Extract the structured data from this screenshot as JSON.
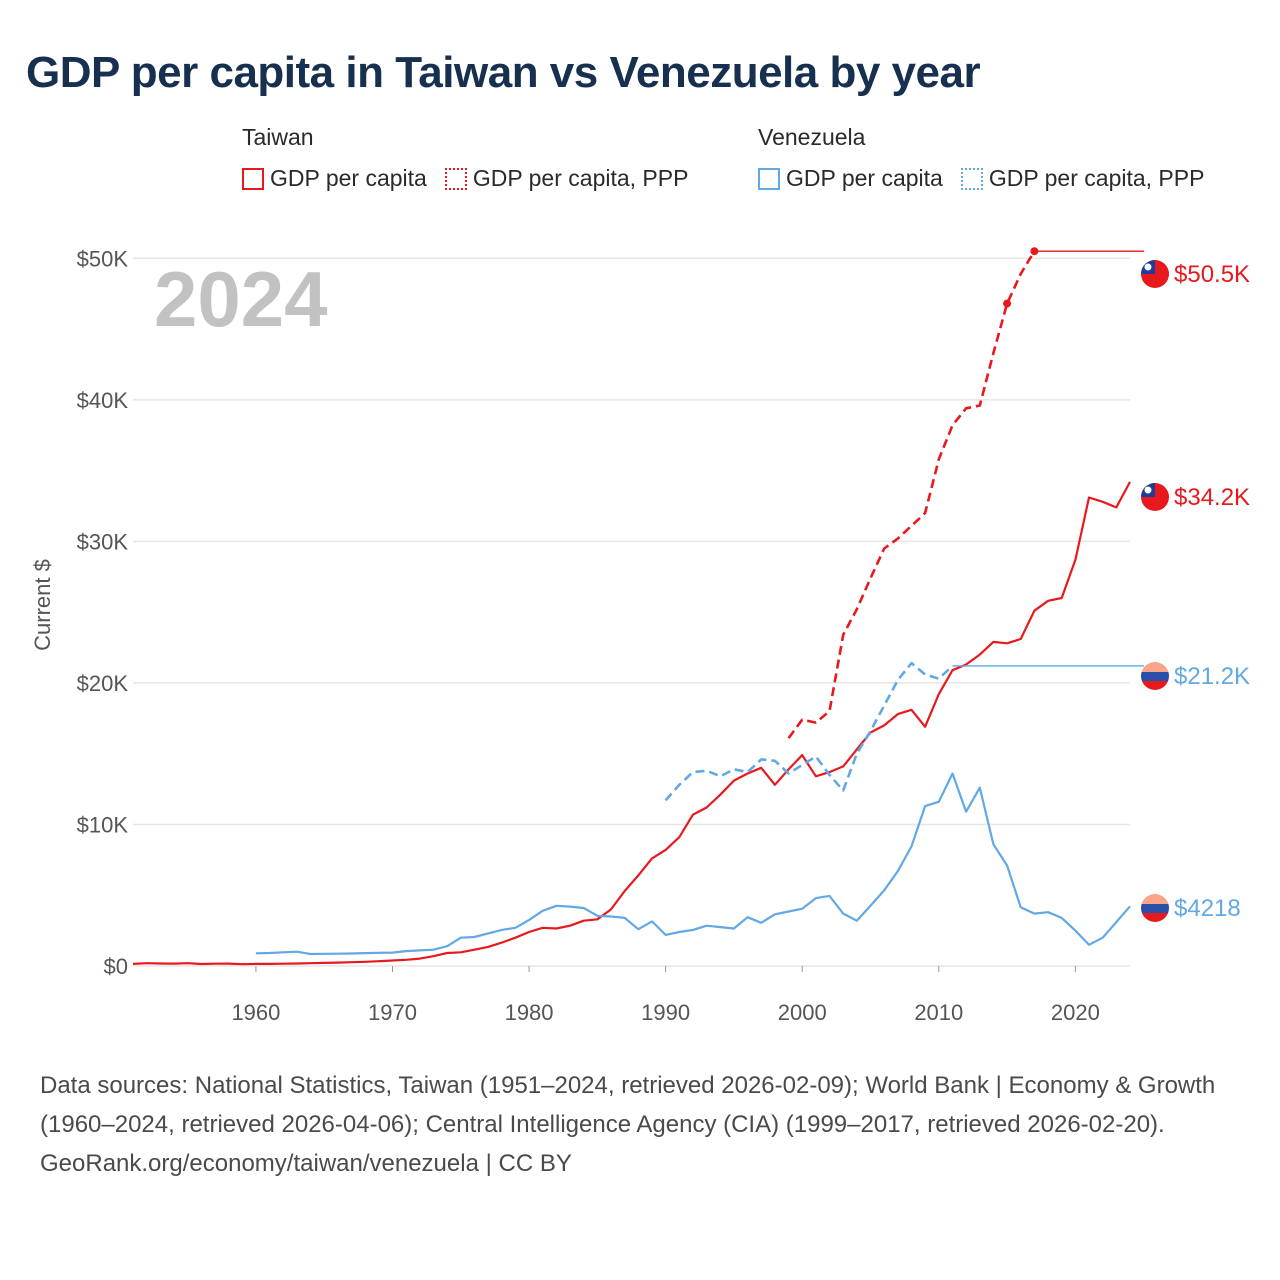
{
  "title": "GDP per capita in Taiwan vs Venezuela by year",
  "legend": {
    "groups": [
      {
        "name": "Taiwan",
        "items": [
          {
            "label": "GDP per capita",
            "color": "#e8191c",
            "style": "solid"
          },
          {
            "label": "GDP per capita, PPP",
            "color": "#e8191c",
            "style": "dotted"
          }
        ]
      },
      {
        "name": "Venezuela",
        "items": [
          {
            "label": "GDP per capita",
            "color": "#62a8e5",
            "style": "solid"
          },
          {
            "label": "GDP per capita, PPP",
            "color": "#62a8e5",
            "style": "dotted"
          }
        ]
      }
    ]
  },
  "colors": {
    "taiwan": "#e8191c",
    "venezuela": "#62a8e5",
    "grid": "#e6e6e6",
    "year": "#c2c2c2"
  },
  "chart_data": {
    "type": "line",
    "current_year": "2024",
    "ylabel": "Current $",
    "xlim": [
      1951,
      2024
    ],
    "ylim": [
      0,
      52000
    ],
    "y_ticks": [
      0,
      10000,
      20000,
      30000,
      40000,
      50000
    ],
    "y_tick_labels": [
      "$0",
      "$10K",
      "$20K",
      "$30K",
      "$40K",
      "$50K"
    ],
    "x_ticks": [
      1960,
      1970,
      1980,
      1990,
      2000,
      2010,
      2020
    ],
    "x_tick_labels": [
      "1960",
      "1970",
      "1980",
      "1990",
      "2000",
      "2010",
      "2020"
    ],
    "series": [
      {
        "name": "Taiwan GDP per capita",
        "country": "taiwan",
        "dash": "solid",
        "end_label": "$34.2K",
        "points": [
          [
            1951,
            150
          ],
          [
            1952,
            200
          ],
          [
            1953,
            180
          ],
          [
            1954,
            170
          ],
          [
            1955,
            200
          ],
          [
            1956,
            140
          ],
          [
            1957,
            160
          ],
          [
            1958,
            170
          ],
          [
            1959,
            130
          ],
          [
            1960,
            150
          ],
          [
            1961,
            150
          ],
          [
            1962,
            160
          ],
          [
            1963,
            180
          ],
          [
            1964,
            200
          ],
          [
            1965,
            220
          ],
          [
            1966,
            240
          ],
          [
            1967,
            270
          ],
          [
            1968,
            300
          ],
          [
            1969,
            340
          ],
          [
            1970,
            390
          ],
          [
            1971,
            440
          ],
          [
            1972,
            520
          ],
          [
            1973,
            690
          ],
          [
            1974,
            920
          ],
          [
            1975,
            970
          ],
          [
            1976,
            1150
          ],
          [
            1977,
            1350
          ],
          [
            1978,
            1650
          ],
          [
            1979,
            2000
          ],
          [
            1980,
            2400
          ],
          [
            1981,
            2700
          ],
          [
            1982,
            2650
          ],
          [
            1983,
            2850
          ],
          [
            1984,
            3200
          ],
          [
            1985,
            3300
          ],
          [
            1986,
            4000
          ],
          [
            1987,
            5300
          ],
          [
            1988,
            6400
          ],
          [
            1989,
            7600
          ],
          [
            1990,
            8200
          ],
          [
            1991,
            9100
          ],
          [
            1992,
            10700
          ],
          [
            1993,
            11200
          ],
          [
            1994,
            12100
          ],
          [
            1995,
            13100
          ],
          [
            1996,
            13600
          ],
          [
            1997,
            14000
          ],
          [
            1998,
            12800
          ],
          [
            1999,
            13900
          ],
          [
            2000,
            14900
          ],
          [
            2001,
            13400
          ],
          [
            2002,
            13700
          ],
          [
            2003,
            14100
          ],
          [
            2004,
            15300
          ],
          [
            2005,
            16500
          ],
          [
            2006,
            17000
          ],
          [
            2007,
            17800
          ],
          [
            2008,
            18100
          ],
          [
            2009,
            16900
          ],
          [
            2010,
            19200
          ],
          [
            2011,
            20900
          ],
          [
            2012,
            21300
          ],
          [
            2013,
            22000
          ],
          [
            2014,
            22900
          ],
          [
            2015,
            22800
          ],
          [
            2016,
            23100
          ],
          [
            2017,
            25100
          ],
          [
            2018,
            25800
          ],
          [
            2019,
            26000
          ],
          [
            2020,
            28700
          ],
          [
            2021,
            33100
          ],
          [
            2022,
            32800
          ],
          [
            2023,
            32400
          ],
          [
            2024,
            34200
          ]
        ]
      },
      {
        "name": "Taiwan GDP per capita, PPP",
        "country": "taiwan",
        "dash": "dashed",
        "end_label": "$50.5K",
        "points": [
          [
            1999,
            16100
          ],
          [
            2000,
            17400
          ],
          [
            2001,
            17200
          ],
          [
            2002,
            18000
          ],
          [
            2003,
            23400
          ],
          [
            2004,
            25200
          ],
          [
            2005,
            27400
          ],
          [
            2006,
            29500
          ],
          [
            2007,
            30200
          ],
          [
            2008,
            31100
          ],
          [
            2009,
            32000
          ],
          [
            2010,
            35800
          ],
          [
            2011,
            38200
          ],
          [
            2012,
            39400
          ],
          [
            2013,
            39600
          ],
          [
            2014,
            43300
          ],
          [
            2015,
            46800
          ],
          [
            2016,
            48900
          ],
          [
            2017,
            50500
          ]
        ],
        "markers": [
          [
            2015,
            46800
          ],
          [
            2017,
            50500
          ]
        ],
        "hold_to": 2024
      },
      {
        "name": "Venezuela GDP per capita",
        "country": "venezuela",
        "dash": "solid",
        "end_label": "$4218",
        "points": [
          [
            1960,
            900
          ],
          [
            1961,
            920
          ],
          [
            1962,
            970
          ],
          [
            1963,
            1010
          ],
          [
            1964,
            850
          ],
          [
            1965,
            860
          ],
          [
            1966,
            870
          ],
          [
            1967,
            880
          ],
          [
            1968,
            910
          ],
          [
            1969,
            930
          ],
          [
            1970,
            950
          ],
          [
            1971,
            1050
          ],
          [
            1972,
            1100
          ],
          [
            1973,
            1150
          ],
          [
            1974,
            1400
          ],
          [
            1975,
            2000
          ],
          [
            1976,
            2050
          ],
          [
            1977,
            2300
          ],
          [
            1978,
            2550
          ],
          [
            1979,
            2700
          ],
          [
            1980,
            3250
          ],
          [
            1981,
            3900
          ],
          [
            1982,
            4250
          ],
          [
            1983,
            4200
          ],
          [
            1984,
            4100
          ],
          [
            1985,
            3550
          ],
          [
            1986,
            3500
          ],
          [
            1987,
            3400
          ],
          [
            1988,
            2600
          ],
          [
            1989,
            3150
          ],
          [
            1990,
            2200
          ],
          [
            1991,
            2400
          ],
          [
            1992,
            2550
          ],
          [
            1993,
            2850
          ],
          [
            1994,
            2750
          ],
          [
            1995,
            2650
          ],
          [
            1996,
            3450
          ],
          [
            1997,
            3050
          ],
          [
            1998,
            3650
          ],
          [
            1999,
            3850
          ],
          [
            2000,
            4050
          ],
          [
            2001,
            4800
          ],
          [
            2002,
            4950
          ],
          [
            2003,
            3700
          ],
          [
            2004,
            3200
          ],
          [
            2005,
            4250
          ],
          [
            2006,
            5350
          ],
          [
            2007,
            6700
          ],
          [
            2008,
            8450
          ],
          [
            2009,
            11300
          ],
          [
            2010,
            11600
          ],
          [
            2011,
            13600
          ],
          [
            2012,
            10900
          ],
          [
            2013,
            12600
          ],
          [
            2014,
            8600
          ],
          [
            2015,
            7100
          ],
          [
            2016,
            4150
          ],
          [
            2017,
            3700
          ],
          [
            2018,
            3800
          ],
          [
            2019,
            3400
          ],
          [
            2020,
            2500
          ],
          [
            2021,
            1500
          ],
          [
            2022,
            2000
          ],
          [
            2023,
            3100
          ],
          [
            2024,
            4218
          ]
        ]
      },
      {
        "name": "Venezuela GDP per capita, PPP",
        "country": "venezuela",
        "dash": "dashed",
        "end_label": "$21.2K",
        "points": [
          [
            1990,
            11700
          ],
          [
            1991,
            12800
          ],
          [
            1992,
            13700
          ],
          [
            1993,
            13800
          ],
          [
            1994,
            13400
          ],
          [
            1995,
            13900
          ],
          [
            1996,
            13700
          ],
          [
            1997,
            14600
          ],
          [
            1998,
            14500
          ],
          [
            1999,
            13600
          ],
          [
            2000,
            14200
          ],
          [
            2001,
            14800
          ],
          [
            2002,
            13500
          ],
          [
            2003,
            12400
          ],
          [
            2004,
            15000
          ],
          [
            2005,
            16600
          ],
          [
            2006,
            18400
          ],
          [
            2007,
            20200
          ],
          [
            2008,
            21400
          ],
          [
            2009,
            20600
          ],
          [
            2010,
            20300
          ],
          [
            2011,
            21200
          ]
        ],
        "hold_to": 2024
      }
    ]
  },
  "footer": {
    "sources": "Data sources: National Statistics, Taiwan (1951–2024, retrieved 2026-02-09); World Bank | Economy & Growth (1960–2024, retrieved 2026-04-06); Central Intelligence Agency (CIA) (1999–2017, retrieved 2026-02-20).",
    "credit": "GeoRank.org/economy/taiwan/venezuela | CC BY"
  }
}
